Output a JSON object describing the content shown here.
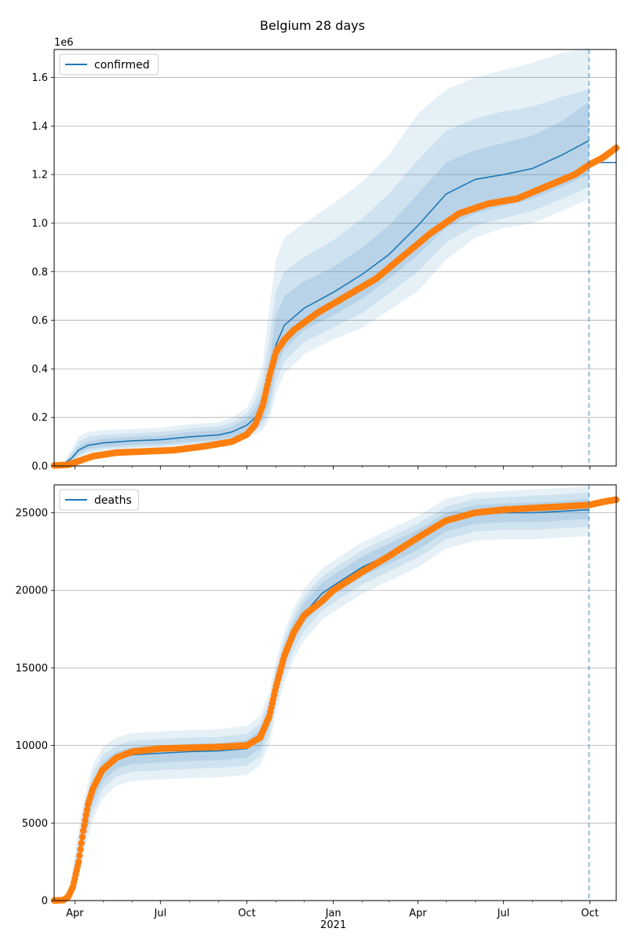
{
  "title": "Belgium 28 days",
  "chart_data": [
    {
      "type": "line",
      "legend": "confirmed",
      "legend_position": "upper-left",
      "grid": "y",
      "y_offset_label": "1e6",
      "ylim": [
        0,
        1.715
      ],
      "ytick_values": [
        0,
        0.2,
        0.4,
        0.6,
        0.8,
        1.0,
        1.2,
        1.4,
        1.6
      ],
      "ytick_labels": [
        "0.0",
        "0.2",
        "0.4",
        "0.6",
        "0.8",
        "1.0",
        "1.2",
        "1.4",
        "1.6"
      ],
      "xlim": [
        "2020-03-10",
        "2021-10-29"
      ],
      "forecast_date": "2021-09-30",
      "colors": {
        "model": "#1f77b4",
        "observed": "#ff7f0e",
        "band": "#1f77b4"
      },
      "model_series": {
        "name": "confirmed",
        "x": [
          "2020-03-10",
          "2020-03-20",
          "2020-03-28",
          "2020-04-05",
          "2020-04-15",
          "2020-05-01",
          "2020-06-01",
          "2020-07-01",
          "2020-08-01",
          "2020-09-01",
          "2020-09-15",
          "2020-10-01",
          "2020-10-10",
          "2020-10-18",
          "2020-10-25",
          "2020-11-01",
          "2020-11-10",
          "2020-12-01",
          "2021-01-01",
          "2021-02-01",
          "2021-03-01",
          "2021-04-01",
          "2021-05-01",
          "2021-06-01",
          "2021-07-01",
          "2021-08-01",
          "2021-09-01",
          "2021-09-30"
        ],
        "median": [
          0.003,
          0.008,
          0.03,
          0.065,
          0.085,
          0.095,
          0.104,
          0.108,
          0.12,
          0.128,
          0.14,
          0.168,
          0.2,
          0.25,
          0.35,
          0.5,
          0.58,
          0.65,
          0.715,
          0.79,
          0.87,
          0.99,
          1.12,
          1.18,
          1.2,
          1.225,
          1.28,
          1.34
        ],
        "inner": [
          [
            0.002,
            0.003
          ],
          [
            0.005,
            0.01
          ],
          [
            0.02,
            0.04
          ],
          [
            0.05,
            0.08
          ],
          [
            0.07,
            0.1
          ],
          [
            0.078,
            0.112
          ],
          [
            0.086,
            0.12
          ],
          [
            0.09,
            0.125
          ],
          [
            0.1,
            0.14
          ],
          [
            0.108,
            0.148
          ],
          [
            0.118,
            0.162
          ],
          [
            0.14,
            0.195
          ],
          [
            0.16,
            0.24
          ],
          [
            0.19,
            0.3
          ],
          [
            0.26,
            0.43
          ],
          [
            0.4,
            0.62
          ],
          [
            0.48,
            0.7
          ],
          [
            0.56,
            0.76
          ],
          [
            0.62,
            0.82
          ],
          [
            0.69,
            0.9
          ],
          [
            0.77,
            0.99
          ],
          [
            0.87,
            1.12
          ],
          [
            0.98,
            1.25
          ],
          [
            1.04,
            1.3
          ],
          [
            1.07,
            1.33
          ],
          [
            1.1,
            1.36
          ],
          [
            1.15,
            1.42
          ],
          [
            1.2,
            1.5
          ]
        ],
        "middle": [
          [
            0.001,
            0.004
          ],
          [
            0.004,
            0.012
          ],
          [
            0.015,
            0.05
          ],
          [
            0.04,
            0.1
          ],
          [
            0.06,
            0.12
          ],
          [
            0.07,
            0.128
          ],
          [
            0.078,
            0.135
          ],
          [
            0.082,
            0.14
          ],
          [
            0.092,
            0.155
          ],
          [
            0.1,
            0.163
          ],
          [
            0.11,
            0.178
          ],
          [
            0.128,
            0.215
          ],
          [
            0.145,
            0.27
          ],
          [
            0.17,
            0.35
          ],
          [
            0.22,
            0.52
          ],
          [
            0.35,
            0.72
          ],
          [
            0.43,
            0.8
          ],
          [
            0.51,
            0.86
          ],
          [
            0.57,
            0.93
          ],
          [
            0.63,
            1.02
          ],
          [
            0.71,
            1.12
          ],
          [
            0.8,
            1.26
          ],
          [
            0.92,
            1.38
          ],
          [
            0.99,
            1.43
          ],
          [
            1.02,
            1.46
          ],
          [
            1.05,
            1.48
          ],
          [
            1.1,
            1.52
          ],
          [
            1.15,
            1.55
          ]
        ],
        "outer": [
          [
            0.0,
            0.005
          ],
          [
            0.002,
            0.016
          ],
          [
            0.01,
            0.065
          ],
          [
            0.03,
            0.12
          ],
          [
            0.05,
            0.14
          ],
          [
            0.06,
            0.148
          ],
          [
            0.068,
            0.152
          ],
          [
            0.073,
            0.158
          ],
          [
            0.082,
            0.172
          ],
          [
            0.09,
            0.18
          ],
          [
            0.1,
            0.198
          ],
          [
            0.115,
            0.24
          ],
          [
            0.13,
            0.31
          ],
          [
            0.15,
            0.42
          ],
          [
            0.19,
            0.65
          ],
          [
            0.3,
            0.85
          ],
          [
            0.38,
            0.94
          ],
          [
            0.46,
            1.0
          ],
          [
            0.52,
            1.08
          ],
          [
            0.57,
            1.17
          ],
          [
            0.64,
            1.28
          ],
          [
            0.72,
            1.45
          ],
          [
            0.85,
            1.55
          ],
          [
            0.94,
            1.6
          ],
          [
            0.98,
            1.63
          ],
          [
            1.0,
            1.66
          ],
          [
            1.05,
            1.7
          ],
          [
            1.1,
            1.72
          ]
        ]
      },
      "observed_series": {
        "x": [
          "2020-03-10",
          "2020-03-25",
          "2020-04-05",
          "2020-04-20",
          "2020-05-15",
          "2020-06-15",
          "2020-07-15",
          "2020-08-15",
          "2020-09-15",
          "2020-10-01",
          "2020-10-10",
          "2020-10-18",
          "2020-10-25",
          "2020-11-01",
          "2020-11-10",
          "2020-11-20",
          "2020-12-15",
          "2021-01-15",
          "2021-02-15",
          "2021-03-15",
          "2021-04-15",
          "2021-05-15",
          "2021-06-15",
          "2021-07-15",
          "2021-08-15",
          "2021-09-15",
          "2021-09-30",
          "2021-10-15",
          "2021-10-29"
        ],
        "y": [
          0.002,
          0.005,
          0.02,
          0.04,
          0.055,
          0.06,
          0.065,
          0.08,
          0.1,
          0.13,
          0.17,
          0.25,
          0.37,
          0.47,
          0.52,
          0.56,
          0.63,
          0.7,
          0.77,
          0.86,
          0.96,
          1.04,
          1.08,
          1.1,
          1.15,
          1.2,
          1.24,
          1.27,
          1.31
        ]
      },
      "reference_x": [
        0.0,
        1.25
      ],
      "reference_y": [
        1.25,
        1.25
      ]
    },
    {
      "type": "line",
      "legend": "deaths",
      "legend_position": "upper-left",
      "grid": "y",
      "ylim": [
        0,
        26800
      ],
      "ytick_values": [
        0,
        5000,
        10000,
        15000,
        20000,
        25000
      ],
      "ytick_labels": [
        "0",
        "5000",
        "10000",
        "15000",
        "20000",
        "25000"
      ],
      "xlim": [
        "2020-03-10",
        "2021-10-29"
      ],
      "xtick_labels": [
        "Apr",
        "Jul",
        "Oct",
        "Jan\n2021",
        "Apr",
        "Jul",
        "Oct"
      ],
      "xtick_dates": [
        "2020-04-01",
        "2020-07-01",
        "2020-10-01",
        "2021-01-01",
        "2021-04-01",
        "2021-07-01",
        "2021-10-01"
      ],
      "forecast_date": "2021-09-30",
      "colors": {
        "model": "#1f77b4",
        "observed": "#ff7f0e",
        "band": "#1f77b4"
      },
      "model_series": {
        "name": "deaths",
        "x": [
          "2020-03-10",
          "2020-03-20",
          "2020-03-27",
          "2020-04-03",
          "2020-04-10",
          "2020-04-20",
          "2020-05-01",
          "2020-05-15",
          "2020-06-01",
          "2020-07-01",
          "2020-08-01",
          "2020-09-01",
          "2020-10-01",
          "2020-10-15",
          "2020-10-25",
          "2020-11-01",
          "2020-11-10",
          "2020-11-20",
          "2020-12-01",
          "2020-12-20",
          "2021-01-01",
          "2021-02-01",
          "2021-03-01",
          "2021-04-01",
          "2021-05-01",
          "2021-06-01",
          "2021-07-01",
          "2021-08-01",
          "2021-09-01",
          "2021-09-30"
        ],
        "median": [
          0,
          20,
          300,
          2000,
          4500,
          7000,
          8400,
          9100,
          9400,
          9500,
          9600,
          9650,
          9800,
          10400,
          11800,
          13800,
          15800,
          17300,
          18500,
          19800,
          20300,
          21500,
          22300,
          23200,
          24400,
          24900,
          25000,
          25000,
          25100,
          25200
        ],
        "inner": [
          [
            0,
            0
          ],
          [
            10,
            40
          ],
          [
            200,
            500
          ],
          [
            1600,
            2600
          ],
          [
            3900,
            5200
          ],
          [
            6300,
            7700
          ],
          [
            7700,
            9000
          ],
          [
            8500,
            9600
          ],
          [
            8800,
            9900
          ],
          [
            8900,
            10000
          ],
          [
            9000,
            10100
          ],
          [
            9050,
            10150
          ],
          [
            9200,
            10350
          ],
          [
            9800,
            11000
          ],
          [
            11200,
            12500
          ],
          [
            13200,
            14500
          ],
          [
            15200,
            16500
          ],
          [
            16700,
            18000
          ],
          [
            17900,
            19200
          ],
          [
            19200,
            20500
          ],
          [
            19700,
            21000
          ],
          [
            20900,
            22200
          ],
          [
            21700,
            23000
          ],
          [
            22600,
            23900
          ],
          [
            23800,
            25000
          ],
          [
            24300,
            25500
          ],
          [
            24400,
            25600
          ],
          [
            24400,
            25650
          ],
          [
            24500,
            25750
          ],
          [
            24600,
            25900
          ]
        ],
        "middle": [
          [
            0,
            0
          ],
          [
            5,
            60
          ],
          [
            120,
            700
          ],
          [
            1300,
            3200
          ],
          [
            3400,
            5800
          ],
          [
            5800,
            8200
          ],
          [
            7200,
            9400
          ],
          [
            8000,
            10000
          ],
          [
            8300,
            10300
          ],
          [
            8400,
            10400
          ],
          [
            8500,
            10500
          ],
          [
            8550,
            10550
          ],
          [
            8700,
            10750
          ],
          [
            9300,
            11400
          ],
          [
            10700,
            12900
          ],
          [
            12700,
            14900
          ],
          [
            14700,
            16900
          ],
          [
            16200,
            18400
          ],
          [
            17400,
            19600
          ],
          [
            18700,
            20900
          ],
          [
            19200,
            21400
          ],
          [
            20400,
            22600
          ],
          [
            21200,
            23400
          ],
          [
            22100,
            24300
          ],
          [
            23300,
            25400
          ],
          [
            23800,
            25900
          ],
          [
            23900,
            26000
          ],
          [
            23900,
            26100
          ],
          [
            24000,
            26200
          ],
          [
            24100,
            26300
          ]
        ],
        "outer": [
          [
            0,
            0
          ],
          [
            0,
            90
          ],
          [
            60,
            900
          ],
          [
            900,
            3800
          ],
          [
            2900,
            6400
          ],
          [
            5200,
            8700
          ],
          [
            6600,
            9900
          ],
          [
            7400,
            10500
          ],
          [
            7700,
            10800
          ],
          [
            7800,
            10900
          ],
          [
            7900,
            11000
          ],
          [
            7950,
            11050
          ],
          [
            8100,
            11250
          ],
          [
            8700,
            11900
          ],
          [
            10100,
            13400
          ],
          [
            12100,
            15400
          ],
          [
            14100,
            17400
          ],
          [
            15600,
            18900
          ],
          [
            16800,
            20100
          ],
          [
            18100,
            21400
          ],
          [
            18600,
            21900
          ],
          [
            19800,
            23100
          ],
          [
            20600,
            23900
          ],
          [
            21500,
            24800
          ],
          [
            22700,
            25900
          ],
          [
            23200,
            26300
          ],
          [
            23300,
            26400
          ],
          [
            23300,
            26500
          ],
          [
            23400,
            26600
          ],
          [
            23500,
            26700
          ]
        ]
      },
      "observed_series": {
        "x": [
          "2020-03-10",
          "2020-03-20",
          "2020-03-25",
          "2020-03-30",
          "2020-04-05",
          "2020-04-10",
          "2020-04-15",
          "2020-04-20",
          "2020-04-30",
          "2020-05-15",
          "2020-06-01",
          "2020-07-01",
          "2020-08-01",
          "2020-09-01",
          "2020-10-01",
          "2020-10-15",
          "2020-10-25",
          "2020-11-01",
          "2020-11-10",
          "2020-11-20",
          "2020-12-01",
          "2020-12-20",
          "2021-01-01",
          "2021-02-01",
          "2021-03-01",
          "2021-04-01",
          "2021-05-01",
          "2021-06-01",
          "2021-07-01",
          "2021-08-01",
          "2021-09-01",
          "2021-09-30",
          "2021-10-15",
          "2021-10-29"
        ],
        "y": [
          0,
          30,
          250,
          900,
          2500,
          4500,
          6200,
          7200,
          8400,
          9200,
          9600,
          9800,
          9850,
          9900,
          10000,
          10500,
          11900,
          13800,
          15800,
          17300,
          18400,
          19300,
          20000,
          21200,
          22200,
          23400,
          24500,
          25000,
          25200,
          25300,
          25400,
          25500,
          25700,
          25850
        ]
      }
    }
  ]
}
